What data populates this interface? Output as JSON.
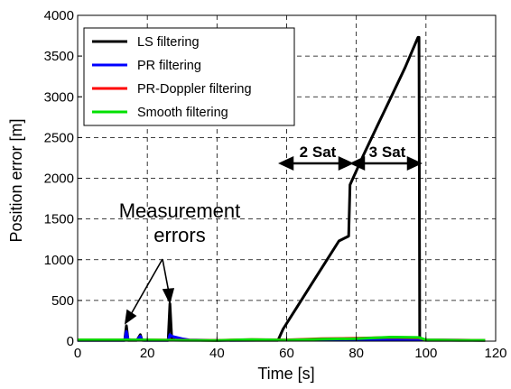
{
  "chart_data": {
    "type": "line",
    "xlabel": "Time [s]",
    "ylabel": "Position error [m]",
    "xlim": [
      0,
      120
    ],
    "ylim": [
      0,
      4000
    ],
    "xticks": [
      0,
      20,
      40,
      60,
      80,
      100,
      120
    ],
    "yticks": [
      0,
      500,
      1000,
      1500,
      2000,
      2500,
      3000,
      3500,
      4000
    ],
    "grid": true,
    "legend_position": "top-left",
    "series": [
      {
        "name": "LS filtering",
        "color": "#000000",
        "x": [
          0,
          13.5,
          14.0,
          14.5,
          17.0,
          18.0,
          18.5,
          19.0,
          26.0,
          26.5,
          27.0,
          27.5,
          28.0,
          30,
          40,
          50,
          57.5,
          59,
          63,
          67,
          71,
          75,
          77.8,
          78.2,
          82,
          86,
          90,
          94,
          97.7,
          98.0,
          98.2,
          100,
          110,
          117
        ],
        "y": [
          10,
          10,
          190,
          10,
          10,
          80,
          10,
          10,
          10,
          460,
          30,
          20,
          15,
          12,
          10,
          10,
          10,
          150,
          420,
          690,
          960,
          1230,
          1290,
          1920,
          2280,
          2640,
          3000,
          3360,
          3730,
          3730,
          15,
          10,
          10,
          10
        ]
      },
      {
        "name": "PR filtering",
        "color": "#0000ff",
        "x": [
          0,
          13.5,
          14.0,
          14.5,
          17.0,
          18.0,
          18.5,
          19.0,
          26.0,
          26.5,
          27.0,
          28.0,
          30,
          32,
          40,
          60,
          80,
          98,
          100,
          117
        ],
        "y": [
          10,
          10,
          120,
          20,
          12,
          60,
          15,
          10,
          10,
          80,
          60,
          50,
          30,
          15,
          10,
          12,
          15,
          20,
          15,
          10
        ]
      },
      {
        "name": "PR-Doppler filtering",
        "color": "#ff0000",
        "x": [
          0,
          20,
          40,
          50,
          60,
          70,
          80,
          90,
          98,
          100,
          117
        ],
        "y": [
          15,
          15,
          10,
          20,
          15,
          30,
          35,
          45,
          40,
          15,
          10
        ]
      },
      {
        "name": "Smooth filtering",
        "color": "#00e000",
        "x": [
          0,
          10,
          20,
          30,
          40,
          50,
          60,
          70,
          80,
          85,
          90,
          98,
          100,
          110,
          117
        ],
        "y": [
          15,
          15,
          15,
          10,
          8,
          20,
          12,
          25,
          30,
          40,
          50,
          45,
          15,
          10,
          10
        ]
      }
    ],
    "annotations": [
      {
        "text": "Measurement",
        "x": 27,
        "y": 1080
      },
      {
        "text": "errors",
        "x": 27,
        "y": 830
      },
      {
        "text": "2 Sat",
        "x": 70,
        "y": 2330
      },
      {
        "text": "3 Sat",
        "x": 90,
        "y": 2330
      }
    ]
  }
}
